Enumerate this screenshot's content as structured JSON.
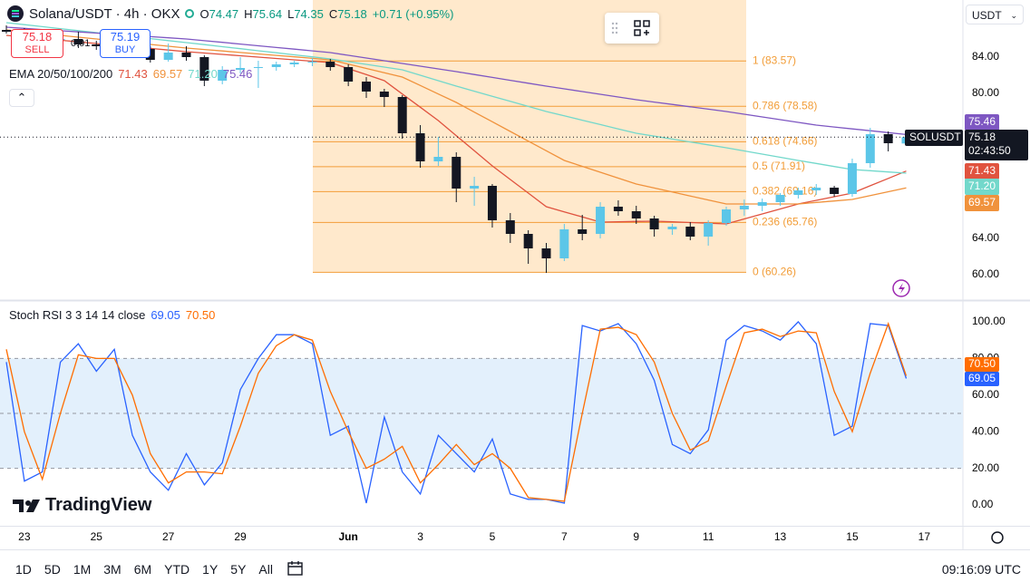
{
  "header": {
    "symbol": "Solana/USDT · 4h · OKX",
    "ohlc": [
      {
        "label": "O",
        "value": "74.47"
      },
      {
        "label": "H",
        "value": "75.64"
      },
      {
        "label": "L",
        "value": "74.35"
      },
      {
        "label": "C",
        "value": "75.18"
      }
    ],
    "change": "+0.71 (+0.95%)"
  },
  "trade": {
    "sell_price": "75.18",
    "sell": "SELL",
    "spread": "0.01",
    "buy_price": "75.19",
    "buy": "BUY"
  },
  "currency": "USDT",
  "symbol_tag": "SOLUSDT",
  "countdown": "02:43:50",
  "brand": "TradingView",
  "ranges": [
    "1D",
    "5D",
    "1M",
    "3M",
    "6M",
    "YTD",
    "1Y",
    "5Y",
    "All"
  ],
  "clock": "09:16:09 UTC",
  "chart_data": [
    {
      "type": "candlestick",
      "legend_title": "EMA 20/50/100/200",
      "categories": [
        null,
        "23",
        null,
        null,
        null,
        "25",
        null,
        null,
        null,
        "27",
        null,
        null,
        null,
        "29",
        null,
        null,
        null,
        null,
        null,
        "Jun",
        null,
        null,
        null,
        "3",
        null,
        null,
        null,
        "5",
        null,
        null,
        null,
        "7",
        null,
        null,
        null,
        "9",
        null,
        null,
        null,
        "11",
        null,
        null,
        null,
        "13",
        null,
        null,
        null,
        "15",
        null,
        null,
        null,
        "17"
      ],
      "open": [
        87,
        86.8,
        86.3,
        85.9,
        86.0,
        85.4,
        85.2,
        85.0,
        84.9,
        83.7,
        84.5,
        84.0,
        81.4,
        82.6,
        82.8,
        82.9,
        83.2,
        83.4,
        83.5,
        82.9,
        81.3,
        80.2,
        79.6,
        75.6,
        72.5,
        73.0,
        69.5,
        69.8,
        66.0,
        64.5,
        62.9,
        61.8,
        65.0,
        64.5,
        67.5,
        67.0,
        66.2,
        65.0,
        65.3,
        64.2,
        65.7,
        67.2,
        67.6,
        68.0,
        68.8,
        69.3,
        69.6,
        68.9,
        72.3,
        75.5,
        74.47,
        null
      ],
      "high": [
        87.5,
        87.2,
        86.6,
        86.5,
        86.8,
        85.8,
        85.5,
        85.4,
        85.2,
        85.5,
        85.2,
        84.2,
        83.0,
        84.0,
        83.6,
        83.5,
        83.6,
        83.9,
        83.8,
        83.2,
        81.8,
        80.5,
        79.8,
        76.5,
        75.2,
        73.5,
        70.8,
        70.0,
        66.8,
        64.9,
        63.5,
        65.6,
        66.6,
        68.0,
        68.2,
        67.6,
        66.5,
        65.6,
        65.8,
        66.0,
        67.5,
        68.3,
        68.4,
        69.0,
        69.6,
        70.0,
        69.8,
        72.8,
        76.2,
        75.8,
        75.64,
        null
      ],
      "low": [
        86.6,
        86.0,
        85.6,
        85.2,
        85.0,
        84.8,
        84.6,
        84.5,
        83.4,
        83.5,
        83.6,
        80.8,
        81.0,
        82.2,
        80.6,
        82.5,
        82.9,
        83.0,
        82.5,
        80.8,
        79.5,
        78.5,
        75.0,
        71.8,
        72.0,
        68.0,
        67.6,
        65.2,
        63.5,
        61.2,
        60.2,
        61.5,
        63.8,
        64.0,
        66.5,
        65.6,
        64.2,
        64.4,
        63.8,
        63.2,
        65.4,
        66.5,
        67.0,
        67.6,
        68.4,
        68.8,
        68.6,
        68.6,
        71.8,
        73.6,
        74.35,
        null
      ],
      "close": [
        86.8,
        86.3,
        85.9,
        86.0,
        85.4,
        85.2,
        85.0,
        84.9,
        83.7,
        84.5,
        84.0,
        81.4,
        82.6,
        82.8,
        82.9,
        83.2,
        83.4,
        83.5,
        82.9,
        81.3,
        80.2,
        79.6,
        75.6,
        72.5,
        73.0,
        69.5,
        69.8,
        66.0,
        64.5,
        62.9,
        61.8,
        65.0,
        64.5,
        67.5,
        67.0,
        66.2,
        65.0,
        65.3,
        64.2,
        65.7,
        67.2,
        67.6,
        68.0,
        68.8,
        69.3,
        69.6,
        68.9,
        72.3,
        75.5,
        74.5,
        75.18,
        null
      ],
      "close_label": "75.18",
      "up_color": "#5cc6e8",
      "down_color": "#131722",
      "series": [
        {
          "color": "#e0533f",
          "value_label": "71.43",
          "values": [
            86.4,
            86.22,
            86.04,
            85.86,
            85.68,
            85.5,
            85.32,
            85.14,
            84.96,
            84.78,
            84.6,
            84.45,
            84.3,
            84.15,
            84.0,
            83.85,
            83.7,
            83.55,
            83.4,
            82.73,
            82.07,
            81.4,
            79.93,
            78.47,
            77.0,
            75.33,
            73.67,
            72.0,
            70.5,
            69.0,
            67.5,
            66.93,
            66.37,
            65.8,
            65.83,
            65.87,
            65.9,
            65.83,
            65.75,
            65.68,
            65.6,
            66.15,
            66.7,
            67.25,
            67.8,
            68.2,
            68.6,
            69.0,
            69.81,
            70.62,
            71.43,
            null
          ]
        },
        {
          "color": "#f0923c",
          "value_label": "69.57",
          "values": [
            87.0,
            86.8,
            86.6,
            86.4,
            86.2,
            86.0,
            85.8,
            85.6,
            85.4,
            85.2,
            85.0,
            84.84,
            84.68,
            84.51,
            84.35,
            84.19,
            84.03,
            83.86,
            83.7,
            83.23,
            82.75,
            82.28,
            81.8,
            80.87,
            79.93,
            79.0,
            77.93,
            76.87,
            75.8,
            74.73,
            73.67,
            72.6,
            71.95,
            71.3,
            70.65,
            70.0,
            69.56,
            69.12,
            68.68,
            68.24,
            67.8,
            67.8,
            67.8,
            67.8,
            67.8,
            67.97,
            68.13,
            68.3,
            68.72,
            69.15,
            69.57,
            null
          ]
        },
        {
          "color": "#72d8cb",
          "value_label": "71.20",
          "values": [
            87.8,
            87.58,
            87.36,
            87.14,
            86.92,
            86.7,
            86.48,
            86.26,
            86.04,
            85.82,
            85.6,
            85.38,
            85.15,
            84.93,
            84.7,
            84.48,
            84.25,
            84.03,
            83.8,
            83.5,
            83.2,
            82.9,
            82.6,
            82.0,
            81.4,
            80.8,
            80.24,
            79.68,
            79.12,
            78.56,
            78.0,
            77.52,
            77.04,
            76.56,
            76.08,
            75.6,
            75.28,
            74.96,
            74.64,
            74.32,
            74.0,
            73.65,
            73.3,
            72.95,
            72.6,
            72.27,
            71.93,
            71.6,
            71.47,
            71.33,
            71.2,
            null
          ]
        },
        {
          "color": "#7e57c2",
          "value_label": "75.46",
          "values": [
            87.3,
            87.17,
            87.04,
            86.91,
            86.78,
            86.65,
            86.52,
            86.39,
            86.26,
            86.13,
            86.0,
            85.81,
            85.63,
            85.44,
            85.25,
            85.06,
            84.88,
            84.69,
            84.5,
            84.2,
            83.9,
            83.6,
            83.3,
            83.0,
            82.7,
            82.4,
            82.08,
            81.76,
            81.44,
            81.12,
            80.8,
            80.5,
            80.2,
            79.9,
            79.6,
            79.3,
            79.04,
            78.78,
            78.52,
            78.26,
            78.0,
            77.7,
            77.4,
            77.1,
            76.8,
            76.5,
            76.29,
            76.08,
            75.88,
            75.67,
            75.46,
            null
          ]
        }
      ],
      "ylim": [
        57.3,
        90.3
      ],
      "yticks": [
        {
          "value": 84,
          "label": "84.00"
        },
        {
          "value": 80,
          "label": "80.00"
        },
        {
          "value": 64,
          "label": "64.00"
        },
        {
          "value": 60,
          "label": "60.00"
        }
      ],
      "fib": {
        "color": "#f29d38",
        "fill": "#ffe9cc",
        "levels": [
          {
            "label": "1 (83.57)",
            "value": 83.57
          },
          {
            "label": "0.786 (78.58)",
            "value": 78.58
          },
          {
            "label": "0.618 (74.66)",
            "value": 74.66
          },
          {
            "label": "0.5 (71.91)",
            "value": 71.91
          },
          {
            "label": "0.382 (69.16)",
            "value": 69.16
          },
          {
            "label": "0.236 (65.76)",
            "value": 65.76
          },
          {
            "label": "0 (60.26)",
            "value": 60.26
          }
        ]
      }
    },
    {
      "type": "line",
      "title": "Stoch RSI 3 3 14 14 close",
      "series": [
        {
          "color": "#2962ff",
          "value_label": "69.05",
          "values": [
            78,
            13,
            18,
            78,
            88,
            73,
            85,
            38,
            18,
            8,
            28,
            11,
            23,
            63,
            80,
            93,
            93,
            88,
            38,
            43,
            1,
            48,
            18,
            6,
            38,
            28,
            18,
            36,
            6,
            3,
            3,
            1,
            98,
            95,
            99,
            88,
            68,
            33,
            28,
            41,
            90,
            98,
            95,
            90,
            100,
            88,
            38,
            43,
            99,
            98,
            69.05,
            null
          ]
        },
        {
          "color": "#ff6d00",
          "value_label": "70.50",
          "values": [
            85,
            40,
            14,
            50,
            82,
            80,
            80,
            60,
            28,
            12,
            18,
            18,
            17,
            43,
            72,
            87,
            93,
            90,
            62,
            40,
            20,
            25,
            32,
            12,
            22,
            33,
            22,
            28,
            20,
            4,
            3,
            2,
            50,
            96,
            97,
            93,
            78,
            50,
            30,
            35,
            65,
            94,
            96,
            92,
            95,
            94,
            62,
            40,
            72,
            99,
            70.5,
            null
          ]
        }
      ],
      "ylim": [
        -11.4,
        110.9
      ],
      "yticks": [
        {
          "value": 100,
          "label": "100.00"
        },
        {
          "value": 80,
          "label": "80.00"
        },
        {
          "value": 60,
          "label": "60.00"
        },
        {
          "value": 40,
          "label": "40.00"
        },
        {
          "value": 20,
          "label": "20.00"
        },
        {
          "value": 0,
          "label": "0.00"
        }
      ],
      "levels": [
        80,
        50,
        20
      ],
      "band_color": "#e3f0fc"
    }
  ]
}
